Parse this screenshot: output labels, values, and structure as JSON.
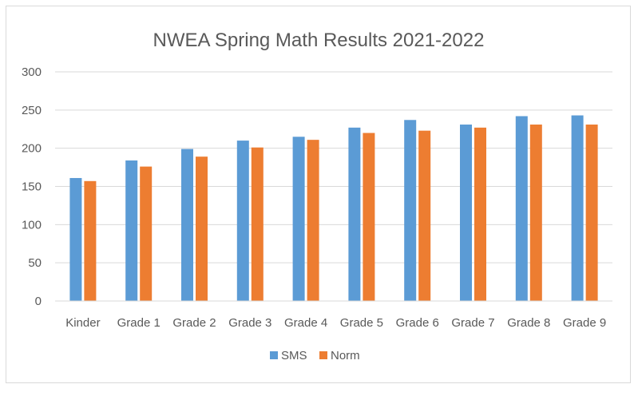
{
  "chart_data": {
    "type": "bar",
    "title": "NWEA Spring Math Results 2021-2022",
    "xlabel": "",
    "ylabel": "",
    "categories": [
      "Kinder",
      "Grade 1",
      "Grade 2",
      "Grade 3",
      "Grade 4",
      "Grade 5",
      "Grade 6",
      "Grade 7",
      "Grade 8",
      "Grade 9"
    ],
    "series": [
      {
        "name": "SMS",
        "color": "#5b9bd5",
        "values": [
          161,
          184,
          199,
          210,
          215,
          227,
          237,
          231,
          242,
          243
        ]
      },
      {
        "name": "Norm",
        "color": "#ed7d31",
        "values": [
          157,
          176,
          189,
          201,
          211,
          220,
          223,
          227,
          231,
          231
        ]
      }
    ],
    "ylim": [
      0,
      300
    ],
    "yticks": [
      0,
      50,
      100,
      150,
      200,
      250,
      300
    ],
    "grid": true,
    "legend_position": "bottom"
  }
}
